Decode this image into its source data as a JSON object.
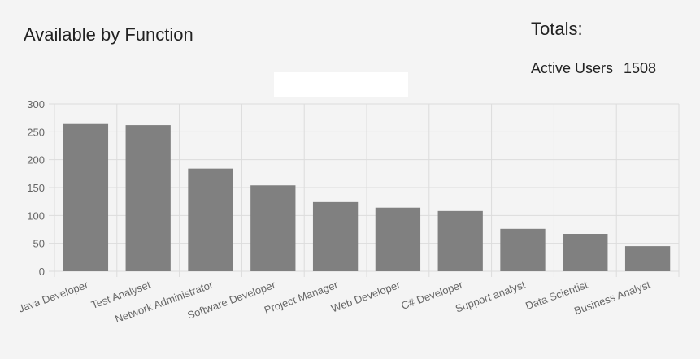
{
  "chart_data": {
    "type": "bar",
    "title": "Available by Function",
    "categories": [
      "Java Developer",
      "Test Analyset",
      "Network Administrator",
      "Software Developer",
      "Project Manager",
      "Web Developer",
      "C# Developer",
      "Support analyst",
      "Data Scientist",
      "Business Analyst"
    ],
    "values": [
      264,
      262,
      184,
      154,
      124,
      114,
      108,
      76,
      67,
      45
    ],
    "color": "#808080",
    "ylim": [
      0,
      300
    ],
    "yticks": [
      0,
      50,
      100,
      150,
      200,
      250,
      300
    ],
    "grid": true
  },
  "totals": {
    "title": "Totals:",
    "label": "Active Users",
    "value": 1508
  }
}
